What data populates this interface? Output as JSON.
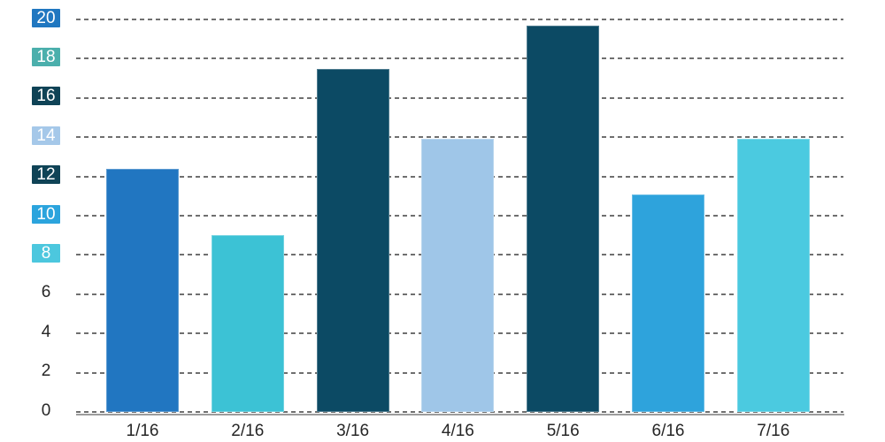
{
  "chart_data": {
    "type": "bar",
    "title": "",
    "xlabel": "",
    "ylabel": "",
    "legend": "none",
    "grid": "dashed-horizontal",
    "ylim": [
      0,
      20
    ],
    "ytick_step": 2,
    "categories": [
      "1/16",
      "2/16",
      "3/16",
      "4/16",
      "5/16",
      "6/16",
      "7/16"
    ],
    "values": [
      12.4,
      9.0,
      17.5,
      13.9,
      19.7,
      11.1,
      13.9
    ],
    "bar_colors": [
      "#2176c1",
      "#3cc2d5",
      "#0c4a64",
      "#9fc6e8",
      "#0c4a64",
      "#2ea3dc",
      "#4bcae0"
    ],
    "yticks": [
      {
        "value": 0,
        "label": "0",
        "box_color": null
      },
      {
        "value": 2,
        "label": "2",
        "box_color": null
      },
      {
        "value": 4,
        "label": "4",
        "box_color": null
      },
      {
        "value": 6,
        "label": "6",
        "box_color": null
      },
      {
        "value": 8,
        "label": "8",
        "box_color": "#4cc7de"
      },
      {
        "value": 10,
        "label": "10",
        "box_color": "#2ba4dd"
      },
      {
        "value": 12,
        "label": "12",
        "box_color": "#0f4356"
      },
      {
        "value": 14,
        "label": "14",
        "box_color": "#a5c8e9"
      },
      {
        "value": 16,
        "label": "16",
        "box_color": "#0f4356"
      },
      {
        "value": 18,
        "label": "18",
        "box_color": "#4bafac"
      },
      {
        "value": 20,
        "label": "20",
        "box_color": "#2077c0"
      }
    ]
  },
  "colors": {
    "background": "#ffffff",
    "gridline": "#6f6f6f",
    "axis_line": "#9c9c9c",
    "tick_text": "#262626",
    "boxed_tick_text": "#ffffff"
  }
}
